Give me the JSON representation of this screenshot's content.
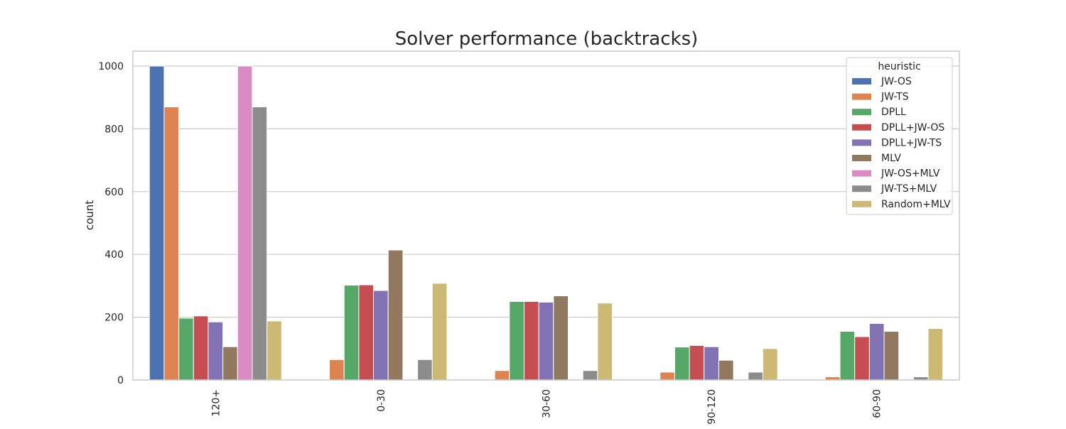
{
  "chart_data": {
    "type": "bar",
    "title": "Solver performance (backtracks)",
    "xlabel": "",
    "ylabel": "count",
    "ylim": [
      0,
      1050
    ],
    "yticks": [
      0,
      200,
      400,
      600,
      800,
      1000
    ],
    "grid": true,
    "legend": {
      "title": "heuristic",
      "position": "top-right"
    },
    "categories": [
      "120+",
      "0-30",
      "30-60",
      "90-120",
      "60-90"
    ],
    "series": [
      {
        "name": "JW-OS",
        "color": "#4c72b0",
        "values": [
          1000,
          0,
          0,
          0,
          0
        ]
      },
      {
        "name": "JW-TS",
        "color": "#dd8452",
        "values": [
          870,
          65,
          30,
          25,
          10
        ]
      },
      {
        "name": "DPLL",
        "color": "#55a868",
        "values": [
          197,
          302,
          250,
          105,
          155
        ]
      },
      {
        "name": "DPLL+JW-OS",
        "color": "#c44e52",
        "values": [
          204,
          303,
          250,
          110,
          138
        ]
      },
      {
        "name": "DPLL+JW-TS",
        "color": "#8172b3",
        "values": [
          185,
          285,
          248,
          106,
          180
        ]
      },
      {
        "name": "MLV",
        "color": "#937860",
        "values": [
          106,
          414,
          268,
          63,
          155
        ]
      },
      {
        "name": "JW-OS+MLV",
        "color": "#da8bc3",
        "values": [
          1000,
          0,
          0,
          0,
          0
        ]
      },
      {
        "name": "JW-TS+MLV",
        "color": "#8c8c8c",
        "values": [
          870,
          65,
          30,
          25,
          10
        ]
      },
      {
        "name": "Random+MLV",
        "color": "#ccb974",
        "values": [
          188,
          308,
          245,
          100,
          164
        ]
      }
    ]
  }
}
